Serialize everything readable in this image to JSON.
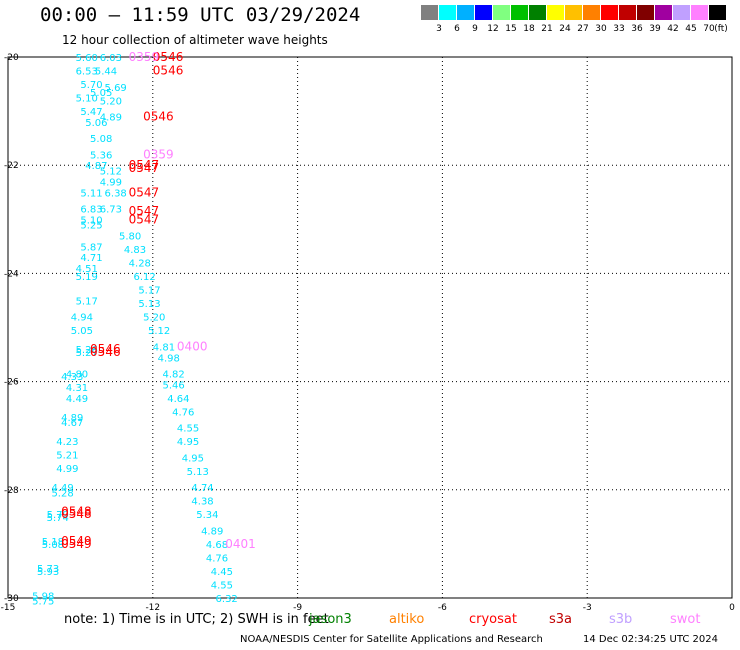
{
  "title": "00:00 — 11:59 UTC 03/29/2024",
  "subtitle": "12 hour collection of altimeter wave heights",
  "colorbar": {
    "unit": "(ft)",
    "colors": [
      "#808080",
      "#00ffff",
      "#00b0ff",
      "#0000ff",
      "#80ff80",
      "#00c000",
      "#008000",
      "#ffff00",
      "#ffc000",
      "#ff8000",
      "#ff0000",
      "#c00000",
      "#800000",
      "#a000a0",
      "#c0a0ff",
      "#ff80ff",
      "#000000"
    ],
    "ticks": [
      "3",
      "6",
      "9",
      "12",
      "15",
      "18",
      "21",
      "24",
      "27",
      "30",
      "33",
      "36",
      "39",
      "42",
      "45",
      "70"
    ]
  },
  "note": "note:  1) Time is in UTC; 2) SWH is in feet",
  "satellites": [
    {
      "name": "jason3",
      "color": "#008000"
    },
    {
      "name": "altiko",
      "color": "#ff8000"
    },
    {
      "name": "cryosat",
      "color": "#ff0000"
    },
    {
      "name": "s3a",
      "color": "#c00000"
    },
    {
      "name": "s3b",
      "color": "#c0a0ff"
    },
    {
      "name": "swot",
      "color": "#ff80ff"
    }
  ],
  "credit": "NOAA/NESDIS Center for Satellite Applications and Research",
  "timestamp": "14 Dec 02:34:25 UTC 2024",
  "chart_data": {
    "type": "scatter",
    "xlim": [
      -15,
      0
    ],
    "ylim": [
      -30,
      -20
    ],
    "x_ticks": [
      "-15",
      "-12",
      "-9",
      "-6",
      "-3",
      "0"
    ],
    "y_ticks": [
      "-20",
      "-22",
      "-24",
      "-26",
      "-28",
      "-30"
    ],
    "grid": true,
    "series": [
      {
        "name": "cryosat",
        "color": "#00e0ff",
        "points": [
          {
            "x": -13.6,
            "y": -20.0,
            "label": "5.60"
          },
          {
            "x": -13.1,
            "y": -20.0,
            "label": "6.03"
          },
          {
            "x": -13.6,
            "y": -20.25,
            "label": "6.53"
          },
          {
            "x": -13.2,
            "y": -20.25,
            "label": "5.44"
          },
          {
            "x": -13.5,
            "y": -20.5,
            "label": "5.70"
          },
          {
            "x": -13.0,
            "y": -20.55,
            "label": "5.69"
          },
          {
            "x": -13.3,
            "y": -20.65,
            "label": "5.05"
          },
          {
            "x": -13.6,
            "y": -20.75,
            "label": "5.10"
          },
          {
            "x": -13.1,
            "y": -20.8,
            "label": "5.20"
          },
          {
            "x": -13.5,
            "y": -21.0,
            "label": "5.47"
          },
          {
            "x": -13.1,
            "y": -21.1,
            "label": "4.89"
          },
          {
            "x": -13.4,
            "y": -21.2,
            "label": "5.06"
          },
          {
            "x": -13.3,
            "y": -21.5,
            "label": "5.08"
          },
          {
            "x": -13.3,
            "y": -21.8,
            "label": "5.36"
          },
          {
            "x": -13.4,
            "y": -22.0,
            "label": "4.87"
          },
          {
            "x": -13.1,
            "y": -22.1,
            "label": "5.12"
          },
          {
            "x": -13.1,
            "y": -22.3,
            "label": "4.99"
          },
          {
            "x": -13.5,
            "y": -22.5,
            "label": "5.11"
          },
          {
            "x": -13.0,
            "y": -22.5,
            "label": "6.38"
          },
          {
            "x": -13.5,
            "y": -22.8,
            "label": "6.83"
          },
          {
            "x": -13.1,
            "y": -22.8,
            "label": "6.73"
          },
          {
            "x": -13.5,
            "y": -23.0,
            "label": "5.10"
          },
          {
            "x": -13.5,
            "y": -23.1,
            "label": "5.25"
          },
          {
            "x": -12.7,
            "y": -23.3,
            "label": "5.80"
          },
          {
            "x": -13.5,
            "y": -23.5,
            "label": "5.87"
          },
          {
            "x": -13.5,
            "y": -23.7,
            "label": "4.71"
          },
          {
            "x": -12.6,
            "y": -23.55,
            "label": "4.83"
          },
          {
            "x": -12.5,
            "y": -23.8,
            "label": "4.28"
          },
          {
            "x": -13.6,
            "y": -23.9,
            "label": "4.51"
          },
          {
            "x": -13.6,
            "y": -24.05,
            "label": "5.19"
          },
          {
            "x": -12.4,
            "y": -24.05,
            "label": "6.12"
          },
          {
            "x": -12.3,
            "y": -24.3,
            "label": "5.17"
          },
          {
            "x": -13.6,
            "y": -24.5,
            "label": "5.17"
          },
          {
            "x": -12.3,
            "y": -24.55,
            "label": "5.13"
          },
          {
            "x": -13.7,
            "y": -24.8,
            "label": "4.94"
          },
          {
            "x": -12.2,
            "y": -24.8,
            "label": "5.20"
          },
          {
            "x": -13.7,
            "y": -25.05,
            "label": "5.05"
          },
          {
            "x": -12.1,
            "y": -25.05,
            "label": "5.12"
          },
          {
            "x": -12.0,
            "y": -25.35,
            "label": "4.81"
          },
          {
            "x": -13.6,
            "y": -25.4,
            "label": "5.26"
          },
          {
            "x": -13.6,
            "y": -25.45,
            "label": "5.27"
          },
          {
            "x": -11.9,
            "y": -25.55,
            "label": "4.98"
          },
          {
            "x": -11.8,
            "y": -25.85,
            "label": "4.82"
          },
          {
            "x": -13.8,
            "y": -25.85,
            "label": "4.80"
          },
          {
            "x": -13.9,
            "y": -25.9,
            "label": "4.33"
          },
          {
            "x": -13.8,
            "y": -26.1,
            "label": "4.31"
          },
          {
            "x": -11.8,
            "y": -26.05,
            "label": "5.46"
          },
          {
            "x": -13.8,
            "y": -26.3,
            "label": "4.49"
          },
          {
            "x": -11.7,
            "y": -26.3,
            "label": "4.64"
          },
          {
            "x": -11.6,
            "y": -26.55,
            "label": "4.76"
          },
          {
            "x": -13.9,
            "y": -26.65,
            "label": "4.89"
          },
          {
            "x": -13.9,
            "y": -26.75,
            "label": "4.67"
          },
          {
            "x": -11.5,
            "y": -26.85,
            "label": "4.55"
          },
          {
            "x": -14.0,
            "y": -27.1,
            "label": "4.23"
          },
          {
            "x": -11.5,
            "y": -27.1,
            "label": "4.95"
          },
          {
            "x": -14.0,
            "y": -27.35,
            "label": "5.21"
          },
          {
            "x": -11.4,
            "y": -27.4,
            "label": "4.95"
          },
          {
            "x": -14.0,
            "y": -27.6,
            "label": "4.99"
          },
          {
            "x": -11.3,
            "y": -27.65,
            "label": "5.13"
          },
          {
            "x": -14.1,
            "y": -27.95,
            "label": "4.49"
          },
          {
            "x": -14.1,
            "y": -28.05,
            "label": "5.28"
          },
          {
            "x": -11.2,
            "y": -27.95,
            "label": "4.74"
          },
          {
            "x": -11.2,
            "y": -28.2,
            "label": "4.38"
          },
          {
            "x": -14.2,
            "y": -28.45,
            "label": "5.79"
          },
          {
            "x": -11.1,
            "y": -28.45,
            "label": "5.34"
          },
          {
            "x": -14.2,
            "y": -28.5,
            "label": "5.74"
          },
          {
            "x": -11.0,
            "y": -28.75,
            "label": "4.89"
          },
          {
            "x": -14.3,
            "y": -28.95,
            "label": "5.18"
          },
          {
            "x": -14.3,
            "y": -29.0,
            "label": "5.08"
          },
          {
            "x": -10.9,
            "y": -29.0,
            "label": "4.68"
          },
          {
            "x": -10.9,
            "y": -29.25,
            "label": "4.76"
          },
          {
            "x": -14.4,
            "y": -29.45,
            "label": "5.73"
          },
          {
            "x": -14.4,
            "y": -29.5,
            "label": "5.93"
          },
          {
            "x": -10.8,
            "y": -29.5,
            "label": "4.45"
          },
          {
            "x": -10.8,
            "y": -29.75,
            "label": "4.55"
          },
          {
            "x": -14.5,
            "y": -29.95,
            "label": "5.98"
          },
          {
            "x": -14.5,
            "y": -30.05,
            "label": "5.75"
          },
          {
            "x": -10.7,
            "y": -30.0,
            "label": "6.32"
          }
        ]
      },
      {
        "name": "s3a",
        "color": "#ff0000",
        "points": [
          {
            "x": -12.0,
            "y": -20.0,
            "label": "0546"
          },
          {
            "x": -12.0,
            "y": -20.25,
            "label": "0546"
          },
          {
            "x": -12.2,
            "y": -21.1,
            "label": "0546"
          },
          {
            "x": -12.5,
            "y": -22.0,
            "label": "0547"
          },
          {
            "x": -12.5,
            "y": -22.05,
            "label": "0547"
          },
          {
            "x": -12.5,
            "y": -22.5,
            "label": "0547"
          },
          {
            "x": -12.5,
            "y": -22.85,
            "label": "0547"
          },
          {
            "x": -12.5,
            "y": -23.0,
            "label": "0547"
          },
          {
            "x": -13.3,
            "y": -25.4,
            "label": "0546"
          },
          {
            "x": -13.3,
            "y": -25.45,
            "label": "0546"
          },
          {
            "x": -13.9,
            "y": -28.4,
            "label": "0548"
          },
          {
            "x": -13.9,
            "y": -28.45,
            "label": "0548"
          },
          {
            "x": -13.9,
            "y": -28.95,
            "label": "0549"
          },
          {
            "x": -13.9,
            "y": -29.0,
            "label": "0549"
          }
        ]
      },
      {
        "name": "swot",
        "color": "#ff80ff",
        "points": [
          {
            "x": -12.5,
            "y": -20.0,
            "label": "0359"
          },
          {
            "x": -12.2,
            "y": -21.8,
            "label": "0359"
          },
          {
            "x": -11.5,
            "y": -25.35,
            "label": "0400"
          },
          {
            "x": -10.5,
            "y": -29.0,
            "label": "0401"
          }
        ]
      }
    ]
  }
}
